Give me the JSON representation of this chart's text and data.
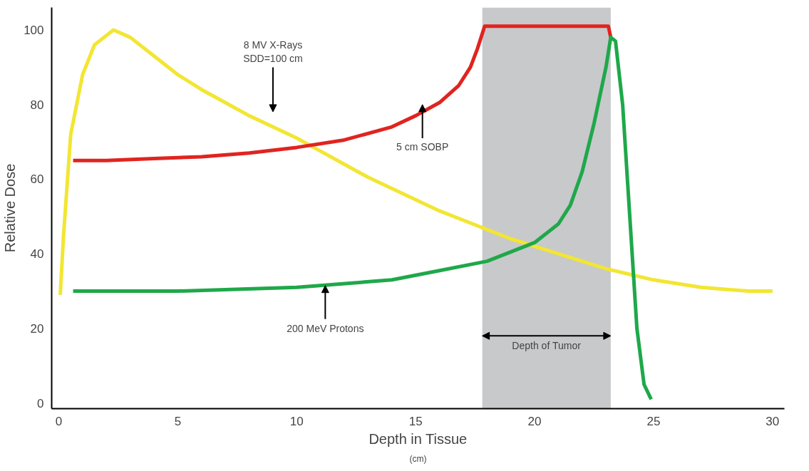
{
  "chart_data": {
    "type": "line",
    "xlabel": "Depth in Tissue",
    "ylabel": "Relative Dose",
    "xlim": [
      -0.3,
      30.5
    ],
    "ylim": [
      -1.5,
      106
    ],
    "xticks": [
      0,
      5,
      10,
      15,
      20,
      25,
      30
    ],
    "yticks": [
      0,
      20,
      40,
      60,
      80,
      100
    ],
    "grid": false,
    "line_style": "solid",
    "marker": "none",
    "series": [
      {
        "color": "#f2e633",
        "x": [
          0.06,
          0.2,
          0.5,
          1,
          1.5,
          2.3,
          3,
          4,
          5,
          6,
          7,
          8,
          9,
          10,
          11,
          12,
          13,
          14,
          15,
          16,
          17,
          18,
          19,
          20,
          21,
          22,
          23,
          24,
          25,
          26,
          27,
          28,
          29,
          30
        ],
        "values": [
          29,
          45,
          72,
          88,
          96,
          100,
          98,
          93,
          88,
          84,
          80.5,
          77,
          74,
          71,
          67.5,
          64,
          60.5,
          57.5,
          54.5,
          51.5,
          49,
          46.5,
          44,
          42,
          40,
          38,
          36,
          34.5,
          33,
          32,
          31,
          30.5,
          30,
          30
        ]
      },
      {
        "color": "#e0241f",
        "x": [
          0.6,
          2,
          4,
          6,
          8,
          10,
          12,
          14,
          15,
          16,
          16.8,
          17.3,
          17.6,
          17.9,
          23.1,
          23.2
        ],
        "values": [
          65,
          65,
          65.5,
          66,
          67,
          68.5,
          70.5,
          74,
          77,
          80.5,
          85,
          90,
          95,
          101,
          101,
          98
        ]
      },
      {
        "color": "#1fa84a",
        "x": [
          0.6,
          5,
          10,
          14,
          16,
          18,
          20,
          21,
          21.5,
          22,
          22.5,
          23,
          23.2,
          23.4,
          23.7,
          24,
          24.3,
          24.6,
          24.9
        ],
        "values": [
          30,
          30,
          31,
          33,
          35.5,
          38,
          43,
          48,
          53,
          62,
          75,
          90,
          98,
          97,
          80,
          50,
          20,
          5,
          1
        ]
      }
    ],
    "bands": [
      {
        "axis": "x",
        "from": 17.8,
        "to": 23.2,
        "label": "Depth of Tumor",
        "color": "#c8c9cb"
      }
    ],
    "annotations": [
      "8 MV X-Rays\nSDD=100 cm",
      "5 cm SOBP",
      {
        "text": "200 MeV Protons",
        "x": 11.2,
        "y": 31.5
      },
      "(cm)"
    ]
  }
}
